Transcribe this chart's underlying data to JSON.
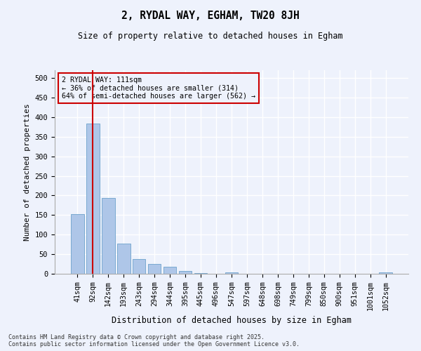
{
  "title1": "2, RYDAL WAY, EGHAM, TW20 8JH",
  "title2": "Size of property relative to detached houses in Egham",
  "xlabel": "Distribution of detached houses by size in Egham",
  "ylabel": "Number of detached properties",
  "categories": [
    "41sqm",
    "92sqm",
    "142sqm",
    "193sqm",
    "243sqm",
    "294sqm",
    "344sqm",
    "395sqm",
    "445sqm",
    "496sqm",
    "547sqm",
    "597sqm",
    "648sqm",
    "698sqm",
    "749sqm",
    "799sqm",
    "850sqm",
    "900sqm",
    "951sqm",
    "1001sqm",
    "1052sqm"
  ],
  "values": [
    152,
    383,
    193,
    77,
    38,
    25,
    18,
    7,
    1,
    0,
    4,
    0,
    0,
    0,
    0,
    0,
    0,
    0,
    0,
    0,
    3
  ],
  "bar_color": "#aec6e8",
  "bar_edge_color": "#7aaad0",
  "vline_x": 1,
  "vline_color": "#cc0000",
  "annotation_line1": "2 RYDAL WAY: 111sqm",
  "annotation_line2": "← 36% of detached houses are smaller (314)",
  "annotation_line3": "64% of semi-detached houses are larger (562) →",
  "annotation_box_color": "#cc0000",
  "ylim": [
    0,
    520
  ],
  "yticks": [
    0,
    50,
    100,
    150,
    200,
    250,
    300,
    350,
    400,
    450,
    500
  ],
  "background_color": "#eef2fc",
  "grid_color": "#ffffff",
  "footer1": "Contains HM Land Registry data © Crown copyright and database right 2025.",
  "footer2": "Contains public sector information licensed under the Open Government Licence v3.0."
}
